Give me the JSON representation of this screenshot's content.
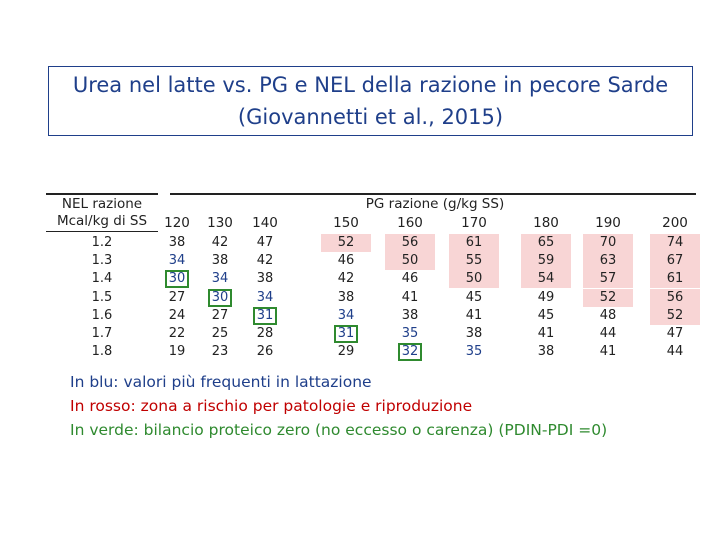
{
  "title": "Urea nel latte vs. PG e NEL della razione in pecore Sarde (Giovannetti et al., 2015)",
  "table": {
    "row_header_line1": "NEL razione",
    "row_header_line2": "Mcal/kg di SS",
    "group_header": "PG razione (g/kg SS)",
    "columns": [
      "120",
      "130",
      "140",
      "150",
      "160",
      "170",
      "180",
      "190",
      "200"
    ],
    "rows": [
      {
        "nel": "1.2",
        "values": [
          "38",
          "42",
          "47",
          "52",
          "56",
          "61",
          "65",
          "70",
          "74"
        ]
      },
      {
        "nel": "1.3",
        "values": [
          "34",
          "38",
          "42",
          "46",
          "50",
          "55",
          "59",
          "63",
          "67"
        ]
      },
      {
        "nel": "1.4",
        "values": [
          "30",
          "34",
          "38",
          "42",
          "46",
          "50",
          "54",
          "57",
          "61"
        ]
      },
      {
        "nel": "1.5",
        "values": [
          "27",
          "30",
          "34",
          "38",
          "41",
          "45",
          "49",
          "52",
          "56"
        ]
      },
      {
        "nel": "1.6",
        "values": [
          "24",
          "27",
          "31",
          "34",
          "38",
          "41",
          "45",
          "48",
          "52"
        ]
      },
      {
        "nel": "1.7",
        "values": [
          "22",
          "25",
          "28",
          "31",
          "35",
          "38",
          "41",
          "44",
          "47"
        ]
      },
      {
        "nel": "1.8",
        "values": [
          "19",
          "23",
          "26",
          "29",
          "32",
          "35",
          "38",
          "41",
          "44"
        ]
      }
    ]
  },
  "legend": {
    "blue": "In blu:  valori più frequenti in lattazione",
    "red": "In rosso: zona a rischio per patologie e riproduzione",
    "green": "In verde:  bilancio proteico zero (no eccesso o carenza) (PDIN-PDI =0)"
  },
  "colors": {
    "blue": "#1f3f8a",
    "red": "#c00000",
    "green": "#2f8a2f",
    "red_fill": "#f8d5d5"
  }
}
